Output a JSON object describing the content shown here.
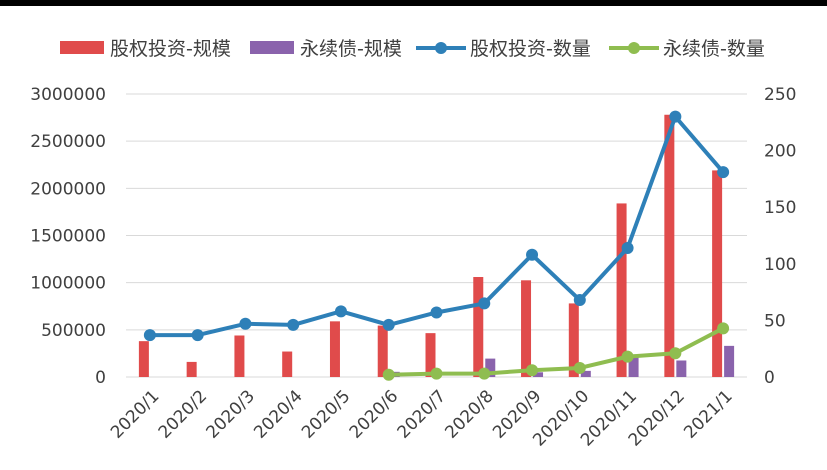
{
  "chart_data": {
    "type": "bar",
    "title": "",
    "xlabel": "",
    "ylabel": "",
    "categories": [
      "2020/1",
      "2020/2",
      "2020/3",
      "2020/4",
      "2020/5",
      "2020/6",
      "2020/7",
      "2020/8",
      "2020/9",
      "2020/10",
      "2020/11",
      "2020/12",
      "2021/1"
    ],
    "ylim": [
      0,
      3000000
    ],
    "y_ticks": [
      "3000000",
      "2500000",
      "2000000",
      "1500000",
      "1000000",
      "500000",
      "0"
    ],
    "y2lim": [
      0,
      250
    ],
    "y2_ticks": [
      "250",
      "200",
      "150",
      "100",
      "50",
      "0"
    ],
    "grid": true,
    "legend_position": "top",
    "series": [
      {
        "name": "股权投资-规模",
        "type": "bar",
        "axis": "left",
        "color": "#e04b4b",
        "values": [
          380000,
          160000,
          440000,
          270000,
          590000,
          545000,
          465000,
          1060000,
          1025000,
          780000,
          1840000,
          2780000,
          2190000
        ]
      },
      {
        "name": "永续债-规模",
        "type": "bar",
        "axis": "left",
        "color": "#8a63ac",
        "values": [
          0,
          0,
          0,
          0,
          0,
          55000,
          0,
          195000,
          50000,
          65000,
          230000,
          175000,
          330000
        ]
      },
      {
        "name": "股权投资-数量",
        "type": "line",
        "axis": "right",
        "color": "#2e80b8",
        "values": [
          37,
          37,
          47,
          46,
          58,
          46,
          57,
          65,
          108,
          68,
          114,
          230,
          181
        ]
      },
      {
        "name": "永续债-数量",
        "type": "line",
        "axis": "right",
        "color": "#8fbd50",
        "values": [
          null,
          null,
          null,
          null,
          null,
          2,
          3,
          3,
          6,
          8,
          18,
          21,
          43
        ]
      }
    ]
  }
}
